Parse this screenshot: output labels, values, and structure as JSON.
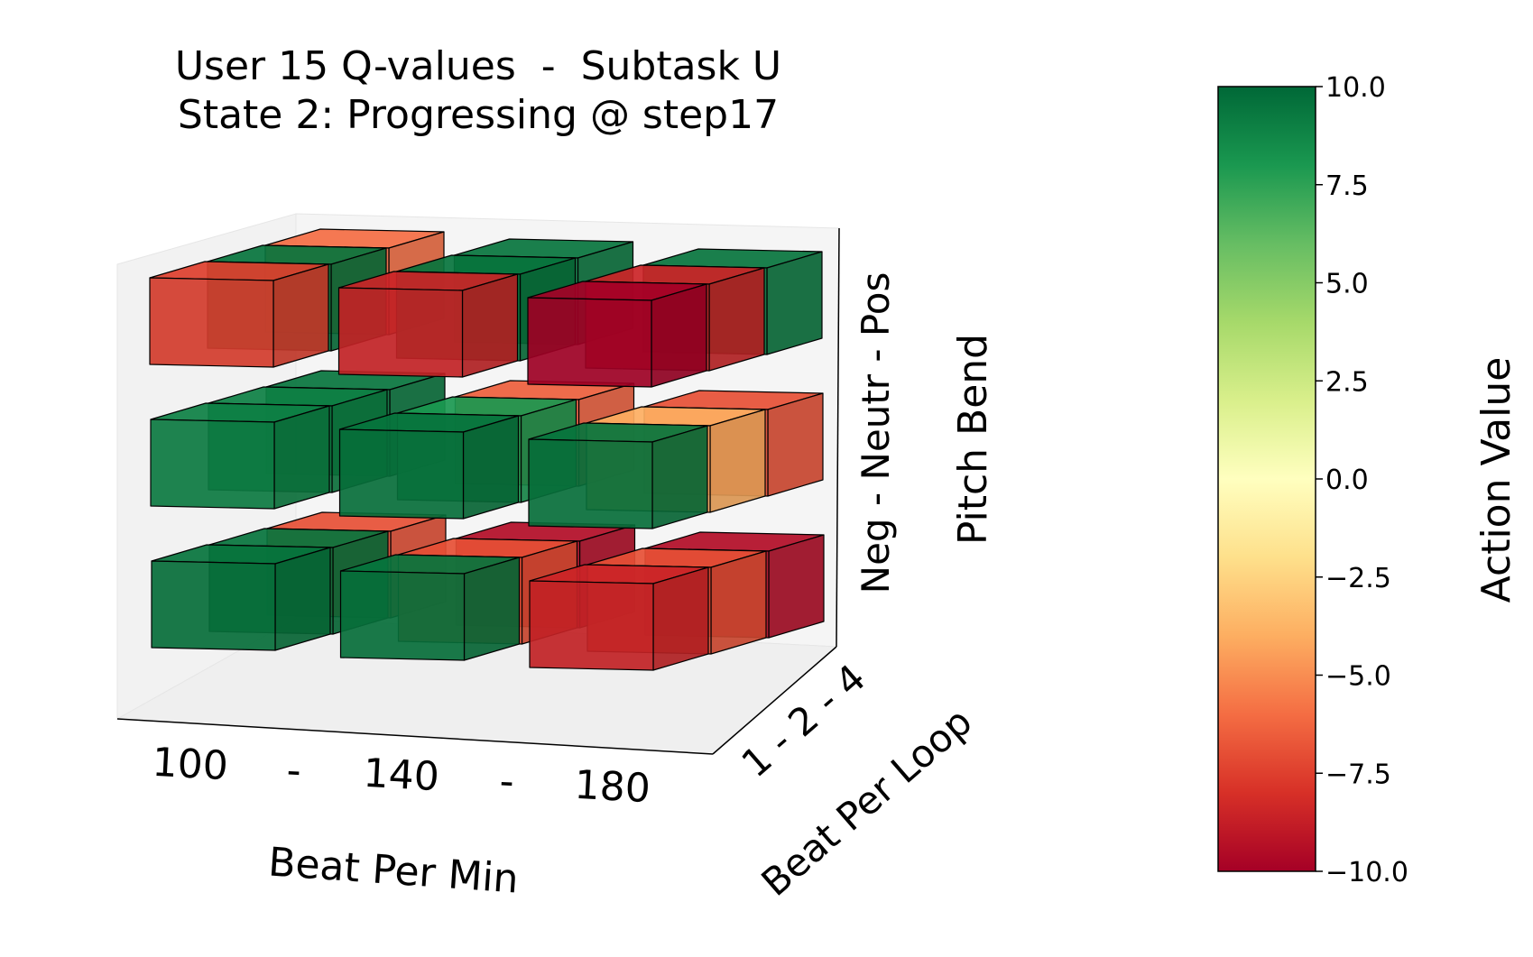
{
  "chart_data": {
    "type": "bar3d",
    "title_line1": "User 15 Q-values  -  Subtask U",
    "title_line2": "State 2: Progressing @ step17",
    "x_axis": {
      "label": "Beat Per Min",
      "ticks": [
        "100",
        "-",
        "140",
        "-",
        "180"
      ],
      "categories": [
        "100",
        "140",
        "180"
      ]
    },
    "y_axis": {
      "label": "Beat Per Loop",
      "tick_text": "1 - 2 - 4",
      "categories": [
        "1",
        "2",
        "4"
      ]
    },
    "z_axis": {
      "label": "Pitch Bend",
      "tick_text": "Neg - Neutr - Pos",
      "categories": [
        "Neg",
        "Neutr",
        "Pos"
      ]
    },
    "colorbar": {
      "label": "Action Value",
      "min": -10.0,
      "max": 10.0,
      "ticks": [
        "10.0",
        "7.5",
        "5.0",
        "2.5",
        "0.0",
        "−2.5",
        "−5.0",
        "−7.5",
        "−10.0"
      ],
      "tick_values": [
        10.0,
        7.5,
        5.0,
        2.5,
        0.0,
        -2.5,
        -5.0,
        -7.5,
        -10.0
      ],
      "colormap": "RdYlGn"
    },
    "values_note": "values[z][y][x] : z = Pitch Bend (Neg, Neutr, Pos), y = Beat Per Loop (1, 2, 4), x = Beat Per Min (100, 140, 180)",
    "values": [
      [
        [
          9.5,
          9.5,
          -8.5
        ],
        [
          9.5,
          -7.0,
          -7.0
        ],
        [
          -7.0,
          -9.5,
          -9.5
        ]
      ],
      [
        [
          9.0,
          9.5,
          9.5
        ],
        [
          9.0,
          8.0,
          -4.0
        ],
        [
          9.5,
          -6.5,
          -7.0
        ]
      ],
      [
        [
          -7.5,
          -8.5,
          -10.0
        ],
        [
          9.5,
          9.5,
          -8.5
        ],
        [
          -6.0,
          9.5,
          9.5
        ]
      ]
    ]
  }
}
